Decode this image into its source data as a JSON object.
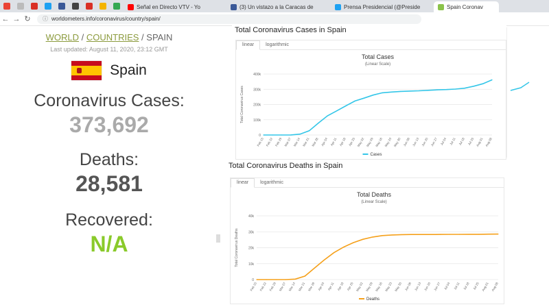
{
  "browser": {
    "tabs": [
      {
        "label": "Señal en Directo VTV - Yo",
        "color": "#ff0000"
      },
      {
        "label": "(3) Un vistazo a la Caracas de",
        "color": "#3b5998"
      },
      {
        "label": "Prensa Presidencial (@Preside",
        "color": "#1da1f2"
      },
      {
        "label": "Spain Coronav",
        "color": "#8bc34a"
      }
    ],
    "url": "worldometers.info/coronavirus/country/spain/"
  },
  "page": {
    "breadcrumb": {
      "world": "WORLD",
      "sep1": " / ",
      "countries": "COUNTRIES",
      "sep2": " / ",
      "current": "SPAIN"
    },
    "last_updated": "Last updated: August 11, 2020, 23:12 GMT",
    "country": "Spain",
    "cases_label": "Coronavirus Cases:",
    "cases_value": "373,692",
    "deaths_label": "Deaths:",
    "deaths_value": "28,581",
    "recovered_label": "Recovered:",
    "recovered_value": "N/A",
    "colors": {
      "cases": "#aaaaaa",
      "deaths": "#555555",
      "recovered": "#8aca2b",
      "link": "#8b9a3c"
    }
  },
  "cases_panel": {
    "heading": "Total Coronavirus Cases in Spain",
    "tab_linear": "linear",
    "tab_log": "logarithmic",
    "chart_title": "Total Cases",
    "chart_subtitle": "(Linear Scale)",
    "ylabel": "Total Coronavirus Cases",
    "legend": "Cases"
  },
  "deaths_panel": {
    "heading": "Total Coronavirus Deaths in Spain",
    "tab_linear": "linear",
    "tab_log": "logarithmic",
    "chart_title": "Total Deaths",
    "chart_subtitle": "(Linear Scale)",
    "ylabel": "Total Coronavirus Deaths",
    "legend": "Deaths"
  },
  "chart_data": [
    {
      "type": "line",
      "title": "Total Cases",
      "subtitle": "(Linear Scale)",
      "ylabel": "Total Coronavirus Cases",
      "color": "#33c6e8",
      "ylim": [
        0,
        400000
      ],
      "yticks": [
        0,
        100000,
        200000,
        300000,
        400000
      ],
      "ytick_labels": [
        "0",
        "100k",
        "200k",
        "300k",
        "400k"
      ],
      "x": [
        "Feb 15",
        "Feb 22",
        "Feb 29",
        "Mar 07",
        "Mar 14",
        "Mar 21",
        "Mar 28",
        "Apr 04",
        "Apr 11",
        "Apr 18",
        "Apr 25",
        "May 02",
        "May 09",
        "May 16",
        "May 23",
        "May 30",
        "Jun 06",
        "Jun 13",
        "Jun 20",
        "Jun 27",
        "Jul 04",
        "Jul 11",
        "Jul 18",
        "Jul 25",
        "Aug 01",
        "Aug 08"
      ],
      "series": [
        {
          "name": "Cases",
          "values": [
            2,
            2,
            45,
            500,
            6000,
            28000,
            78000,
            126000,
            158000,
            191000,
            223000,
            242000,
            262000,
            277000,
            282000,
            286000,
            288000,
            290000,
            293000,
            296000,
            298000,
            301000,
            307000,
            320000,
            336000,
            362000
          ]
        }
      ]
    },
    {
      "type": "line",
      "title": "Total Deaths",
      "subtitle": "(Linear Scale)",
      "ylabel": "Total Coronavirus Deaths",
      "color": "#f5a01a",
      "ylim": [
        0,
        40000
      ],
      "yticks": [
        0,
        10000,
        20000,
        30000,
        40000
      ],
      "ytick_labels": [
        "0",
        "10k",
        "20k",
        "30k",
        "40k"
      ],
      "x": [
        "Feb 15",
        "Feb 22",
        "Feb 29",
        "Mar 07",
        "Mar 14",
        "Mar 21",
        "Mar 28",
        "Apr 04",
        "Apr 11",
        "Apr 18",
        "Apr 25",
        "May 02",
        "May 09",
        "May 16",
        "May 23",
        "May 30",
        "Jun 06",
        "Jun 13",
        "Jun 20",
        "Jun 27",
        "Jul 04",
        "Jul 11",
        "Jul 18",
        "Jul 25",
        "Aug 01",
        "Aug 08"
      ],
      "series": [
        {
          "name": "Deaths",
          "values": [
            0,
            0,
            0,
            10,
            300,
            2200,
            7300,
            12400,
            16900,
            20400,
            23200,
            25300,
            26700,
            27600,
            28000,
            28200,
            28300,
            28300,
            28320,
            28340,
            28380,
            28400,
            28420,
            28440,
            28500,
            28580
          ]
        }
      ]
    }
  ]
}
